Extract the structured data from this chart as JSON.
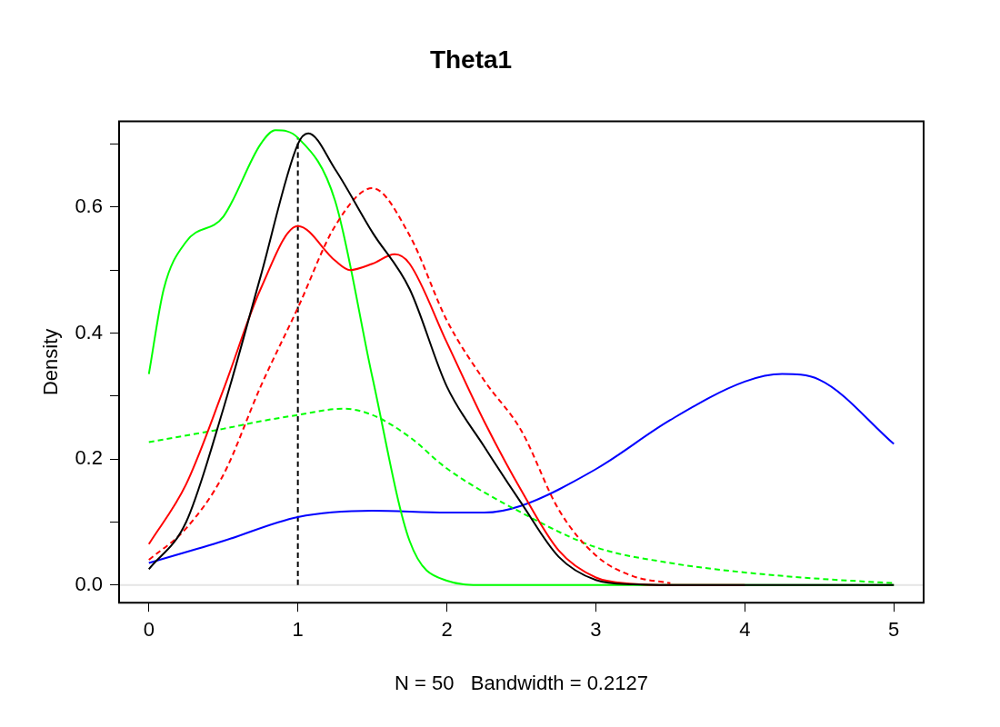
{
  "chart_data": {
    "type": "line",
    "title": "Theta1",
    "xlabel": "N = 50   Bandwidth = 0.2127",
    "ylabel": "Density",
    "xlim": [
      -0.2,
      5.2
    ],
    "ylim": [
      -0.028,
      0.736
    ],
    "xticks": [
      0,
      1,
      2,
      3,
      4,
      5
    ],
    "yticks": [
      {
        "value": 0,
        "label": "0.0"
      },
      {
        "value": 0.1,
        "label": null
      },
      {
        "value": 0.2,
        "label": "0.2"
      },
      {
        "value": 0.3,
        "label": null
      },
      {
        "value": 0.4,
        "label": "0.4"
      },
      {
        "value": 0.5,
        "label": null
      },
      {
        "value": 0.6,
        "label": "0.6"
      },
      {
        "value": 0.7,
        "label": null
      }
    ],
    "grid": false,
    "legend": false,
    "marker": "none",
    "ref_lines": [
      {
        "axis": "y",
        "value": 0,
        "color": "#e5e5e5",
        "line_style": "solid"
      }
    ],
    "series": [
      {
        "color": "#000000",
        "line_style": "solid",
        "x": [
          0,
          0.25,
          0.5,
          0.75,
          1,
          1.07,
          1.25,
          1.5,
          1.75,
          2,
          2.25,
          2.5,
          2.75,
          3,
          3.25,
          3.5,
          4,
          4.5,
          5
        ],
        "values": [
          0.025,
          0.1,
          0.28,
          0.49,
          0.7,
          0.717,
          0.66,
          0.56,
          0.47,
          0.315,
          0.22,
          0.13,
          0.045,
          0.008,
          0.001,
          0,
          0,
          0,
          0
        ]
      },
      {
        "color": "#ff0000",
        "line_style": "solid",
        "x": [
          0,
          0.25,
          0.5,
          0.75,
          1,
          1.25,
          1.35,
          1.5,
          1.65,
          1.75,
          2,
          2.25,
          2.5,
          2.75,
          3,
          3.25,
          3.5,
          4
        ],
        "values": [
          0.065,
          0.16,
          0.31,
          0.47,
          0.57,
          0.515,
          0.5,
          0.51,
          0.525,
          0.51,
          0.385,
          0.26,
          0.15,
          0.055,
          0.012,
          0.002,
          0,
          0
        ]
      },
      {
        "color": "#ff0000",
        "line_style": "dashed",
        "x": [
          0,
          0.25,
          0.5,
          0.75,
          1,
          1.25,
          1.5,
          1.75,
          2,
          2.25,
          2.5,
          2.75,
          3,
          3.25,
          3.5
        ],
        "values": [
          0.04,
          0.09,
          0.175,
          0.315,
          0.44,
          0.57,
          0.63,
          0.555,
          0.42,
          0.325,
          0.245,
          0.12,
          0.047,
          0.014,
          0.003
        ]
      },
      {
        "color": "#00ff00",
        "line_style": "solid",
        "x": [
          0,
          0.1,
          0.25,
          0.5,
          0.75,
          0.85,
          1,
          1.25,
          1.5,
          1.75,
          2,
          2.25,
          3,
          4,
          5
        ],
        "values": [
          0.335,
          0.47,
          0.545,
          0.585,
          0.7,
          0.722,
          0.71,
          0.61,
          0.33,
          0.07,
          0.007,
          0,
          0,
          0,
          0
        ]
      },
      {
        "color": "#00ff00",
        "line_style": "dashed",
        "x": [
          0,
          0.5,
          0.75,
          1,
          1.3,
          1.5,
          1.75,
          2,
          2.5,
          3,
          3.5,
          4,
          4.5,
          5
        ],
        "values": [
          0.227,
          0.248,
          0.26,
          0.27,
          0.28,
          0.27,
          0.235,
          0.185,
          0.115,
          0.06,
          0.035,
          0.02,
          0.01,
          0.003
        ]
      },
      {
        "color": "#0000ff",
        "line_style": "solid",
        "x": [
          0,
          0.5,
          1,
          1.5,
          2,
          2.25,
          2.5,
          3,
          3.5,
          4,
          4.25,
          4.5,
          5
        ],
        "values": [
          0.035,
          0.07,
          0.108,
          0.118,
          0.115,
          0.115,
          0.126,
          0.184,
          0.262,
          0.323,
          0.335,
          0.326,
          0.224
        ]
      },
      {
        "color": "#000000",
        "line_style": "dashed",
        "x": [
          1,
          1
        ],
        "values": [
          0,
          0.71
        ]
      }
    ]
  }
}
